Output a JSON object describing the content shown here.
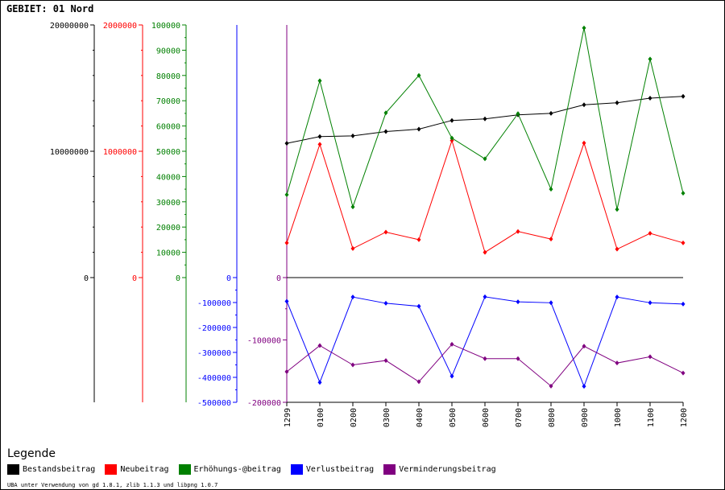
{
  "title": "GEBIET: 01 Nord",
  "legend_title": "Legende",
  "footer": "UBA unter Verwendung von gd 1.8.1, zlib 1.1.3 und libpng 1.0.7",
  "colors": {
    "Bestandsbeitrag": "#000000",
    "Neubeitrag": "#ff0000",
    "Erhöhungs-@beitrag": "#008000",
    "Verlustbeitrag": "#0000ff",
    "Verminderungsbeitrag": "#800080"
  },
  "chart_data": {
    "type": "line",
    "x": [
      "1299",
      "0100",
      "0200",
      "0300",
      "0400",
      "0500",
      "0600",
      "0700",
      "0800",
      "0900",
      "1000",
      "1100",
      "1200"
    ],
    "axes": [
      {
        "id": "black",
        "color": "#000000",
        "ylim": [
          0,
          20000000
        ],
        "ticks": [
          "0",
          "10000000",
          "20000000"
        ]
      },
      {
        "id": "red",
        "color": "#ff0000",
        "ylim": [
          0,
          2000000
        ],
        "ticks": [
          "0",
          "1000000",
          "2000000"
        ]
      },
      {
        "id": "green",
        "color": "#008000",
        "ylim": [
          0,
          100000
        ],
        "ticks": [
          "0",
          "10000",
          "20000",
          "30000",
          "40000",
          "50000",
          "60000",
          "70000",
          "80000",
          "90000",
          "100000"
        ]
      },
      {
        "id": "blue",
        "color": "#0000ff",
        "ylim": [
          -500000,
          0
        ],
        "ticks": [
          "0",
          "-100000",
          "-200000",
          "-300000",
          "-400000",
          "-500000"
        ]
      },
      {
        "id": "purple",
        "color": "#800080",
        "ylim": [
          -200000,
          0
        ],
        "ticks": [
          "0",
          "-100000",
          "-200000"
        ]
      }
    ],
    "series": [
      {
        "name": "Bestandsbeitrag",
        "axis": "black",
        "values": [
          10630000,
          11160000,
          11220000,
          11560000,
          11750000,
          12440000,
          12560000,
          12880000,
          13000000,
          13680000,
          13840000,
          14200000,
          14350000
        ]
      },
      {
        "name": "Neubeitrag",
        "axis": "red",
        "values": [
          275000,
          1055000,
          230000,
          360000,
          300000,
          1085000,
          200000,
          365000,
          305000,
          1065000,
          225000,
          350000,
          275000
        ]
      },
      {
        "name": "Erhöhungs-@beitrag",
        "axis": "green",
        "values": [
          32800,
          77900,
          28000,
          65200,
          80000,
          55200,
          47000,
          64900,
          35000,
          98800,
          27000,
          86500,
          33400
        ]
      },
      {
        "name": "Verlustbeitrag",
        "axis": "blue",
        "values": [
          -95000,
          -420000,
          -78000,
          -103000,
          -115000,
          -395000,
          -77000,
          -97000,
          -101000,
          -436000,
          -78000,
          -101000,
          -106000
        ]
      },
      {
        "name": "Verminderungsbeitrag",
        "axis": "purple",
        "values": [
          -151000,
          -109000,
          -140000,
          -133000,
          -167000,
          -107000,
          -130000,
          -130000,
          -174000,
          -110000,
          -137000,
          -127000,
          -153000
        ]
      }
    ]
  }
}
